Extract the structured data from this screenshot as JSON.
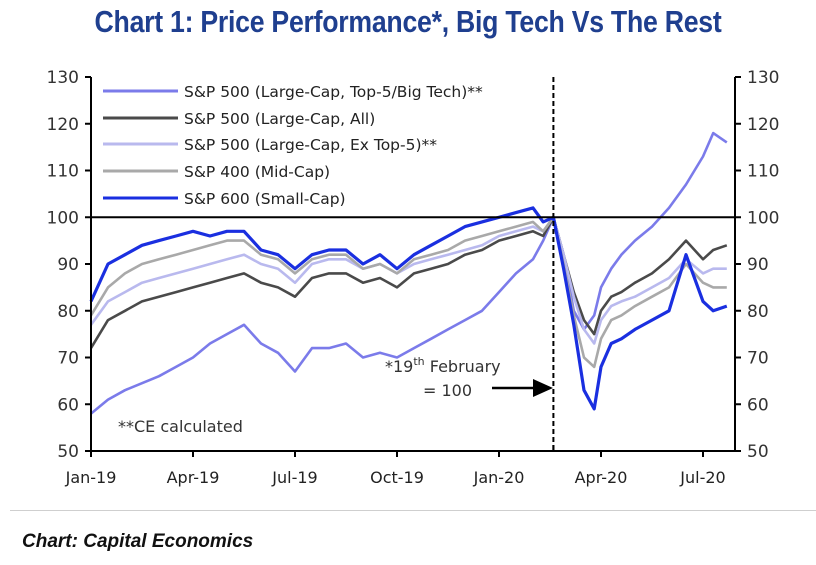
{
  "title": "Chart 1: Price Performance*, Big Tech Vs The Rest",
  "source": "Chart: Capital Economics",
  "colors": {
    "title": "#1f3f8f",
    "big_tech": "#7b7bea",
    "all": "#4a4a4a",
    "ex_top5": "#b9b9ee",
    "mid_cap": "#a9a9a9",
    "small_cap": "#1a2fe0"
  },
  "chart_data": {
    "type": "line",
    "title": "Chart 1: Price Performance*, Big Tech Vs The Rest",
    "xlabel": "",
    "ylabel": "",
    "ylim": [
      50,
      130
    ],
    "y_ticks": [
      "130",
      "120",
      "110",
      "100",
      "90",
      "80",
      "70",
      "60",
      "50"
    ],
    "y_tick_values": [
      130,
      120,
      110,
      100,
      90,
      80,
      70,
      60,
      50
    ],
    "x_ticks": [
      "Jan-19",
      "Apr-19",
      "Jul-19",
      "Oct-19",
      "Jan-20",
      "Apr-20",
      "Jul-20"
    ],
    "x_tick_months": [
      0,
      3,
      6,
      9,
      12,
      15,
      18
    ],
    "x_range_months": [
      0,
      18.7
    ],
    "reference_line": {
      "y": 100,
      "label": "100"
    },
    "event_line": {
      "x_month": 13.6,
      "label": "19 Feb 2020"
    },
    "grid": false,
    "legend_position": "top-left",
    "annotations": {
      "rebase_line1_pre": "*19",
      "rebase_line1_sup": "th",
      "rebase_line1_post": " February",
      "rebase_line2": "= 100",
      "note": "**CE calculated"
    },
    "x": [
      0,
      0.5,
      1,
      1.5,
      2,
      2.5,
      3,
      3.5,
      4,
      4.5,
      5,
      5.5,
      6,
      6.5,
      7,
      7.5,
      8,
      8.5,
      9,
      9.5,
      10,
      10.5,
      11,
      11.5,
      12,
      12.5,
      13,
      13.3,
      13.6,
      13.9,
      14.2,
      14.5,
      14.8,
      15,
      15.3,
      15.6,
      16,
      16.5,
      17,
      17.5,
      18,
      18.3,
      18.7
    ],
    "series": [
      {
        "name": "S&P 500 (Large-Cap, Top-5/Big Tech)**",
        "color_key": "big_tech",
        "values": [
          58,
          61,
          63,
          64.5,
          66,
          68,
          70,
          73,
          75,
          77,
          73,
          71,
          67,
          72,
          72,
          73,
          70,
          71,
          70,
          72,
          74,
          76,
          78,
          80,
          84,
          88,
          91,
          95,
          100,
          92,
          80,
          76,
          79,
          85,
          89,
          92,
          95,
          98,
          102,
          107,
          113,
          118,
          116
        ]
      },
      {
        "name": "S&P 500 (Large-Cap, All)",
        "color_key": "all",
        "values": [
          72,
          78,
          80,
          82,
          83,
          84,
          85,
          86,
          87,
          88,
          86,
          85,
          83,
          87,
          88,
          88,
          86,
          87,
          85,
          88,
          89,
          90,
          92,
          93,
          95,
          96,
          97,
          96,
          100,
          92,
          84,
          78,
          75,
          80,
          83,
          84,
          86,
          88,
          91,
          95,
          91,
          93,
          94
        ]
      },
      {
        "name": "S&P 500 (Large-Cap, Ex Top-5)**",
        "color_key": "ex_top5",
        "values": [
          77,
          82,
          84,
          86,
          87,
          88,
          89,
          90,
          91,
          92,
          90,
          89,
          86,
          90,
          91,
          91,
          89,
          90,
          88,
          90,
          91,
          92,
          93,
          94,
          96,
          97,
          98,
          97,
          100,
          92,
          83,
          76,
          73,
          78,
          81,
          82,
          83,
          85,
          87,
          91,
          88,
          89,
          89
        ]
      },
      {
        "name": "S&P 400 (Mid-Cap)",
        "color_key": "mid_cap",
        "values": [
          79,
          85,
          88,
          90,
          91,
          92,
          93,
          94,
          95,
          95,
          92,
          91,
          88,
          91,
          92,
          92,
          89,
          90,
          88,
          91,
          92,
          93,
          95,
          96,
          97,
          98,
          99,
          97,
          100,
          90,
          79,
          70,
          68,
          74,
          78,
          79,
          81,
          83,
          85,
          90,
          86,
          85,
          85
        ]
      },
      {
        "name": "S&P 600 (Small-Cap)",
        "color_key": "small_cap",
        "values": [
          82,
          90,
          92,
          94,
          95,
          96,
          97,
          96,
          97,
          97,
          93,
          92,
          89,
          92,
          93,
          93,
          90,
          92,
          89,
          92,
          94,
          96,
          98,
          99,
          100,
          101,
          102,
          99,
          100,
          89,
          77,
          63,
          59,
          68,
          73,
          74,
          76,
          78,
          80,
          92,
          82,
          80,
          81
        ]
      }
    ]
  }
}
